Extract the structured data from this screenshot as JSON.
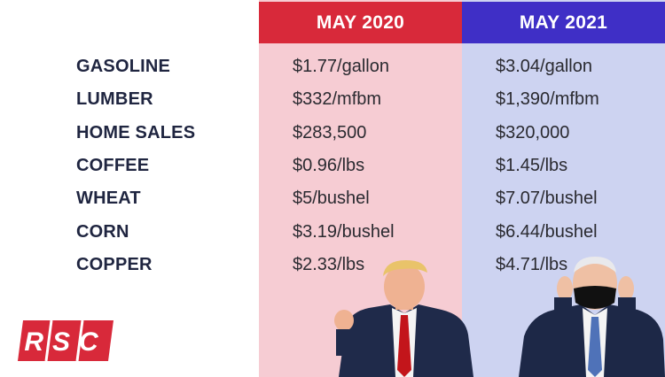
{
  "headers": {
    "col_2020": "MAY 2020",
    "col_2021": "MAY 2021"
  },
  "rows": [
    {
      "label": "GASOLINE",
      "may_2020": "$1.77/gallon",
      "may_2021": "$3.04/gallon"
    },
    {
      "label": "LUMBER",
      "may_2020": "$332/mfbm",
      "may_2021": "$1,390/mfbm"
    },
    {
      "label": "HOME SALES",
      "may_2020": "$283,500",
      "may_2021": "$320,000"
    },
    {
      "label": "COFFEE",
      "may_2020": "$0.96/lbs",
      "may_2021": "$1.45/lbs"
    },
    {
      "label": "WHEAT",
      "may_2020": "$5/bushel",
      "may_2021": "$7.07/bushel"
    },
    {
      "label": "CORN",
      "may_2020": "$3.19/bushel",
      "may_2021": "$6.44/bushel"
    },
    {
      "label": "COPPER",
      "may_2020": "$2.33/lbs",
      "may_2021": "$4.71/lbs"
    }
  ],
  "logo": {
    "text": "RSC"
  },
  "colors": {
    "header_2020": "#d8293a",
    "header_2021": "#3f2fc6",
    "column_2020": "#f6ccd3",
    "column_2021": "#cdd3f1",
    "label_text": "#1f2540",
    "logo_red": "#d8293a"
  },
  "images": {
    "portrait_2020": "man-in-dark-suit-red-tie-fist-raised",
    "portrait_2021": "man-in-dark-suit-adjusting-black-face-mask"
  }
}
